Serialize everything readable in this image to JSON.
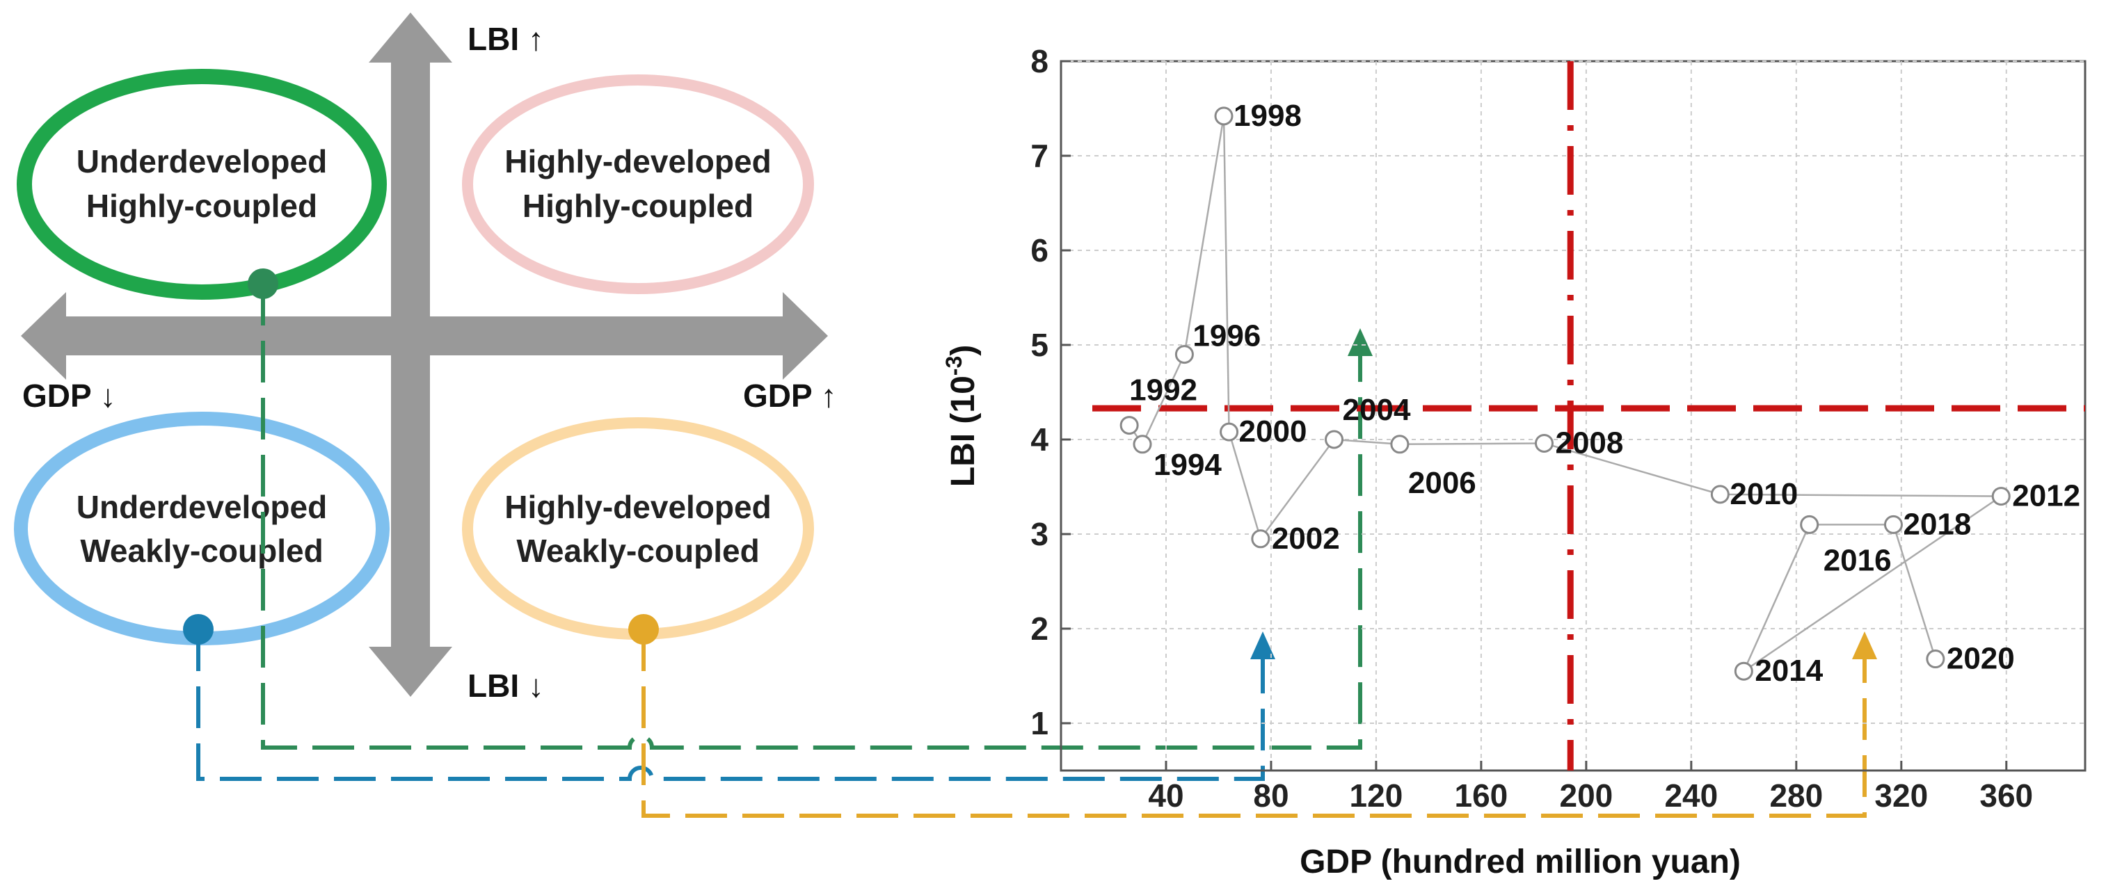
{
  "quadrant_diagram": {
    "top_left": {
      "line1": "Underdeveloped",
      "line2": "Highly-coupled"
    },
    "top_right": {
      "line1": "Highly-developed",
      "line2": "Highly-coupled"
    },
    "bottom_left": {
      "line1": "Underdeveloped",
      "line2": "Weakly-coupled"
    },
    "bottom_right": {
      "line1": "Highly-developed",
      "line2": "Weakly-coupled"
    },
    "arrow_up_label": "LBI ↑",
    "arrow_down_label": "LBI ↓",
    "arrow_left_label": "GDP ↓",
    "arrow_right_label": "GDP ↑",
    "colors": {
      "top_left": "#1fa64b",
      "top_right": "#f3c9c9",
      "bottom_left": "#7fc0ee",
      "bottom_right": "#fbd9a3",
      "green_connector": "#2e8b57",
      "blue_connector": "#1a7fb0",
      "orange_connector": "#e3a82a",
      "threshold_line": "#c81414",
      "axis_arrows": "#999999"
    }
  },
  "chart_data": {
    "type": "scatter",
    "title": "",
    "xlabel": "GDP (hundred million yuan)",
    "ylabel_main": "LBI (10",
    "ylabel_sup": "-3",
    "ylabel_close": ")",
    "xlim": [
      0,
      390
    ],
    "ylim": [
      0.5,
      8
    ],
    "x_ticks": [
      40,
      80,
      120,
      160,
      200,
      240,
      280,
      320,
      360
    ],
    "y_ticks": [
      1,
      2,
      3,
      4,
      5,
      6,
      7,
      8
    ],
    "grid": true,
    "connected_order": [
      "1992",
      "1994",
      "1996",
      "1998",
      "2000",
      "2002",
      "2004",
      "2006",
      "2008",
      "2010",
      "2012",
      "2014",
      "2016",
      "2018",
      "2020"
    ],
    "points": [
      {
        "year": "1992",
        "x": 26,
        "y": 4.15
      },
      {
        "year": "1994",
        "x": 31,
        "y": 3.95
      },
      {
        "year": "1996",
        "x": 47,
        "y": 4.9
      },
      {
        "year": "1998",
        "x": 62,
        "y": 7.42
      },
      {
        "year": "2000",
        "x": 64,
        "y": 4.08
      },
      {
        "year": "2002",
        "x": 76,
        "y": 2.95
      },
      {
        "year": "2004",
        "x": 104,
        "y": 4.0
      },
      {
        "year": "2006",
        "x": 129,
        "y": 3.95
      },
      {
        "year": "2008",
        "x": 184,
        "y": 3.96
      },
      {
        "year": "2010",
        "x": 251,
        "y": 3.42
      },
      {
        "year": "2012",
        "x": 358,
        "y": 3.4
      },
      {
        "year": "2014",
        "x": 260,
        "y": 1.55
      },
      {
        "year": "2016",
        "x": 285,
        "y": 3.1
      },
      {
        "year": "2018",
        "x": 317,
        "y": 3.1
      },
      {
        "year": "2020",
        "x": 333,
        "y": 1.68
      }
    ],
    "threshold_x": 194,
    "threshold_y": 4.33
  }
}
